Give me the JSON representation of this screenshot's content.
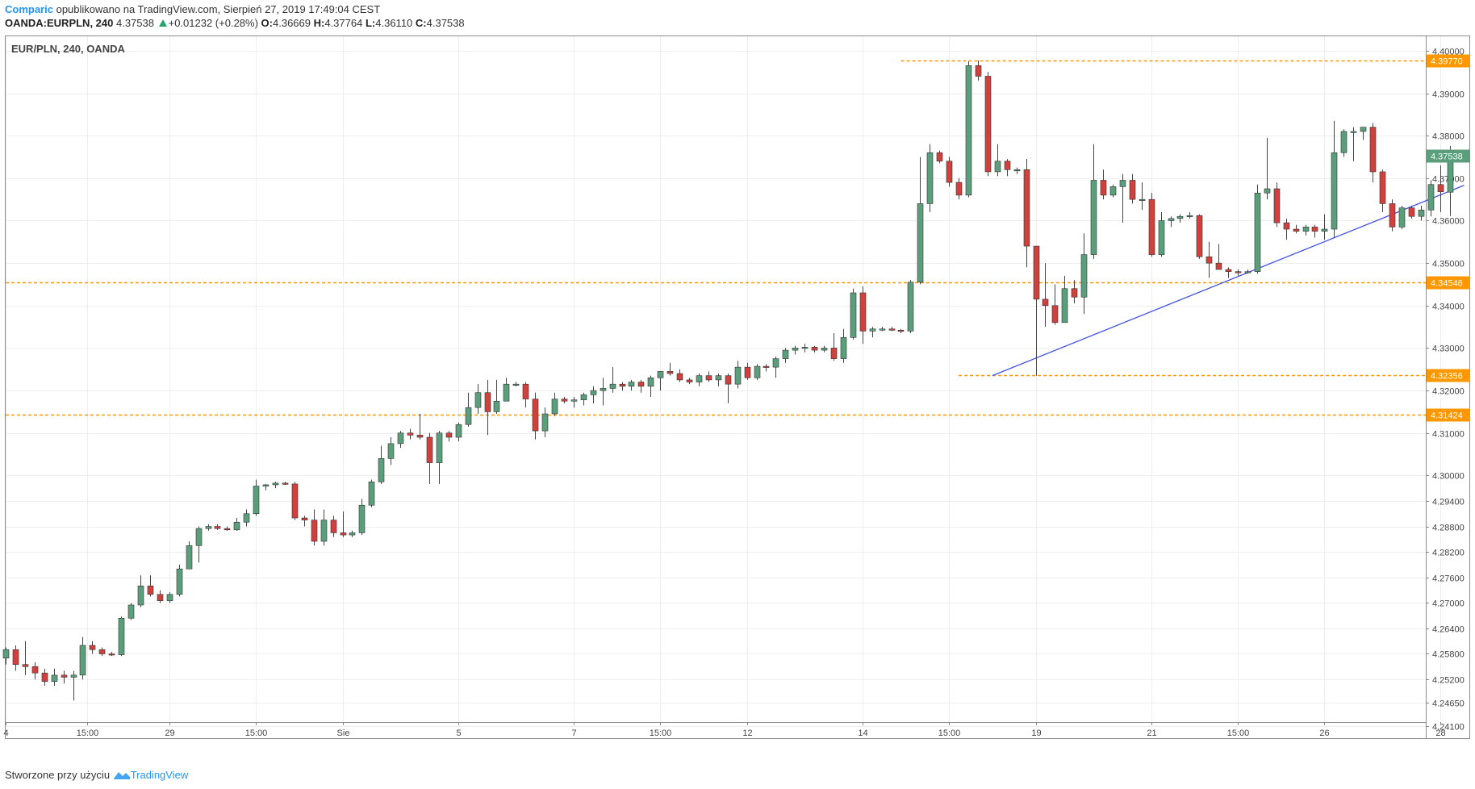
{
  "header": {
    "author": "Comparic",
    "published": "opublikowano na TradingView.com, Sierpień 27, 2019 17:49:04 CEST",
    "symbol": "OANDA:EURPLN, 240",
    "last": "4.37538",
    "change": "+0.01232 (+0.28%)",
    "o_label": "O:",
    "o": "4.36669",
    "h_label": "H:",
    "h": "4.37764",
    "l_label": "L:",
    "l": "4.36110",
    "c_label": "C:",
    "c": "4.37538"
  },
  "footer": {
    "prefix": "Stworzone przy użyciu",
    "brand": "TradingView",
    "brand_icon": "tradingview-logo-icon"
  },
  "colors": {
    "up": "#5b9e7c",
    "down": "#d0413d",
    "hline": "#ff9800",
    "trend": "#3f51e5",
    "label": "#ff9800",
    "lastlabel": "#5b9e7c"
  },
  "chart_data": {
    "type": "candlestick",
    "title": "EUR/PLN, 240, OANDA",
    "ylim": [
      4.2385,
      4.4015
    ],
    "y_ticks": [
      4.241,
      4.2465,
      4.252,
      4.258,
      4.264,
      4.27,
      4.276,
      4.282,
      4.288,
      4.294,
      4.3,
      4.31,
      4.32,
      4.33,
      4.34,
      4.35,
      4.36,
      4.37,
      4.38,
      4.39,
      4.4
    ],
    "y_tick_labels": [
      "4.24100",
      "4.24650",
      "4.25200",
      "4.25800",
      "4.26400",
      "4.27000",
      "4.27600",
      "4.28200",
      "4.28800",
      "4.29400",
      "4.30000",
      "4.31000",
      "4.32000",
      "4.33000",
      "4.34000",
      "4.35000",
      "4.36000",
      "4.37000",
      "4.38000",
      "4.39000",
      "4.40000"
    ],
    "x_ticks": [
      {
        "label": "4",
        "i": 0
      },
      {
        "label": "15:00",
        "i": 8.5
      },
      {
        "label": "29",
        "i": 17
      },
      {
        "label": "15:00",
        "i": 26
      },
      {
        "label": "Sie",
        "i": 35
      },
      {
        "label": "5",
        "i": 47
      },
      {
        "label": "7",
        "i": 59
      },
      {
        "label": "15:00",
        "i": 68
      },
      {
        "label": "12",
        "i": 77
      },
      {
        "label": "14",
        "i": 89
      },
      {
        "label": "15:00",
        "i": 98
      },
      {
        "label": "19",
        "i": 107
      },
      {
        "label": "21",
        "i": 119
      },
      {
        "label": "15:00",
        "i": 128
      },
      {
        "label": "26",
        "i": 137
      },
      {
        "label": "28",
        "i": 149
      }
    ],
    "hlines": [
      {
        "value": 4.3977,
        "label": "4.39770",
        "from_i": 93
      },
      {
        "value": 4.34546,
        "label": "4.34546",
        "from_i": -1
      },
      {
        "value": 4.32356,
        "label": "4.32356",
        "from_i": 99
      },
      {
        "value": 4.31424,
        "label": "4.31424",
        "from_i": -1
      }
    ],
    "last_price": {
      "value": 4.37538,
      "label": "4.37538"
    },
    "trendline": {
      "from": {
        "i": 102.5,
        "v": 4.3235
      },
      "to": {
        "i": 151.5,
        "v": 4.3683
      }
    },
    "candles": [
      [
        4.257,
        4.2595,
        4.2555,
        4.259
      ],
      [
        4.259,
        4.26,
        4.254,
        4.2555
      ],
      [
        4.2555,
        4.261,
        4.253,
        4.255
      ],
      [
        4.255,
        4.256,
        4.252,
        4.2535
      ],
      [
        4.2535,
        4.2545,
        4.2505,
        4.2515
      ],
      [
        4.2515,
        4.2545,
        4.2505,
        4.253
      ],
      [
        4.253,
        4.254,
        4.251,
        4.2525
      ],
      [
        4.2525,
        4.254,
        4.247,
        4.253
      ],
      [
        4.253,
        4.262,
        4.252,
        4.26
      ],
      [
        4.26,
        4.261,
        4.258,
        4.259
      ],
      [
        4.259,
        4.2595,
        4.2575,
        4.258
      ],
      [
        4.258,
        4.2585,
        4.2575,
        4.2578
      ],
      [
        4.2578,
        4.2668,
        4.2575,
        4.2664
      ],
      [
        4.2664,
        4.27,
        4.266,
        4.2695
      ],
      [
        4.2695,
        4.2765,
        4.269,
        4.274
      ],
      [
        4.274,
        4.2765,
        4.2715,
        4.272
      ],
      [
        4.272,
        4.273,
        4.27,
        4.2705
      ],
      [
        4.2705,
        4.2725,
        4.27,
        4.272
      ],
      [
        4.272,
        4.279,
        4.2715,
        4.278
      ],
      [
        4.278,
        4.2845,
        4.278,
        4.2835
      ],
      [
        4.2835,
        4.288,
        4.2795,
        4.2875
      ],
      [
        4.2875,
        4.2885,
        4.287,
        4.288
      ],
      [
        4.288,
        4.2885,
        4.2872,
        4.2875
      ],
      [
        4.2875,
        4.288,
        4.287,
        4.2872
      ],
      [
        4.2872,
        4.29,
        4.287,
        4.289
      ],
      [
        4.289,
        4.292,
        4.288,
        4.291
      ],
      [
        4.291,
        4.299,
        4.2905,
        4.2975
      ],
      [
        4.2975,
        4.298,
        4.2965,
        4.2978
      ],
      [
        4.2978,
        4.2985,
        4.297,
        4.2982
      ],
      [
        4.2982,
        4.2985,
        4.2978,
        4.298
      ],
      [
        4.298,
        4.2985,
        4.2895,
        4.29
      ],
      [
        4.29,
        4.2905,
        4.288,
        4.2895
      ],
      [
        4.2895,
        4.292,
        4.2835,
        4.2845
      ],
      [
        4.2845,
        4.292,
        4.2835,
        4.2895
      ],
      [
        4.2895,
        4.2905,
        4.2855,
        4.2865
      ],
      [
        4.2865,
        4.2915,
        4.2855,
        4.286
      ],
      [
        4.286,
        4.287,
        4.2855,
        4.2865
      ],
      [
        4.2865,
        4.2945,
        4.286,
        4.293
      ],
      [
        4.293,
        4.299,
        4.2925,
        4.2985
      ],
      [
        4.2985,
        4.307,
        4.298,
        4.304
      ],
      [
        4.304,
        4.309,
        4.3025,
        4.3075
      ],
      [
        4.3075,
        4.3105,
        4.3065,
        4.31
      ],
      [
        4.31,
        4.311,
        4.3085,
        4.3095
      ],
      [
        4.3095,
        4.3145,
        4.3085,
        4.309
      ],
      [
        4.309,
        4.31,
        4.298,
        4.303
      ],
      [
        4.303,
        4.3105,
        4.298,
        4.31
      ],
      [
        4.31,
        4.3105,
        4.308,
        4.309
      ],
      [
        4.309,
        4.3125,
        4.308,
        4.312
      ],
      [
        4.312,
        4.3195,
        4.3115,
        4.316
      ],
      [
        4.316,
        4.3215,
        4.3145,
        4.3195
      ],
      [
        4.3195,
        4.3225,
        4.3095,
        4.315
      ],
      [
        4.315,
        4.3225,
        4.3145,
        4.3175
      ],
      [
        4.3175,
        4.323,
        4.3175,
        4.3215
      ],
      [
        4.3215,
        4.322,
        4.321,
        4.3215
      ],
      [
        4.3215,
        4.322,
        4.316,
        4.318
      ],
      [
        4.318,
        4.3195,
        4.3085,
        4.3105
      ],
      [
        4.3105,
        4.316,
        4.309,
        4.3145
      ],
      [
        4.3145,
        4.3195,
        4.314,
        4.318
      ],
      [
        4.318,
        4.3185,
        4.317,
        4.3175
      ],
      [
        4.3175,
        4.3185,
        4.316,
        4.3178
      ],
      [
        4.3178,
        4.3195,
        4.3165,
        4.319
      ],
      [
        4.319,
        4.321,
        4.317,
        4.32
      ],
      [
        4.32,
        4.323,
        4.3165,
        4.3205
      ],
      [
        4.3205,
        4.3255,
        4.3195,
        4.3215
      ],
      [
        4.3215,
        4.322,
        4.32,
        4.321
      ],
      [
        4.321,
        4.3225,
        4.32,
        4.322
      ],
      [
        4.322,
        4.3225,
        4.3195,
        4.321
      ],
      [
        4.321,
        4.3235,
        4.3185,
        4.323
      ],
      [
        4.323,
        4.3245,
        4.32,
        4.3245
      ],
      [
        4.3245,
        4.3265,
        4.3235,
        4.324
      ],
      [
        4.324,
        4.325,
        4.322,
        4.3225
      ],
      [
        4.3225,
        4.323,
        4.3215,
        4.322
      ],
      [
        4.322,
        4.324,
        4.321,
        4.3235
      ],
      [
        4.3235,
        4.3245,
        4.322,
        4.3225
      ],
      [
        4.3225,
        4.324,
        4.321,
        4.3235
      ],
      [
        4.3235,
        4.324,
        4.317,
        4.3215
      ],
      [
        4.3215,
        4.327,
        4.3205,
        4.3255
      ],
      [
        4.3255,
        4.3265,
        4.3225,
        4.323
      ],
      [
        4.323,
        4.3262,
        4.3225,
        4.3257
      ],
      [
        4.3257,
        4.3262,
        4.3245,
        4.3255
      ],
      [
        4.3255,
        4.328,
        4.323,
        4.3275
      ],
      [
        4.3275,
        4.33,
        4.3265,
        4.3295
      ],
      [
        4.3295,
        4.3305,
        4.3285,
        4.33
      ],
      [
        4.33,
        4.331,
        4.329,
        4.3302
      ],
      [
        4.3302,
        4.3305,
        4.329,
        4.3295
      ],
      [
        4.3295,
        4.3305,
        4.329,
        4.33
      ],
      [
        4.33,
        4.3335,
        4.327,
        4.3275
      ],
      [
        4.3275,
        4.3345,
        4.3265,
        4.3325
      ],
      [
        4.3325,
        4.344,
        4.332,
        4.343
      ],
      [
        4.343,
        4.3445,
        4.331,
        4.334
      ],
      [
        4.334,
        4.335,
        4.3325,
        4.3345
      ],
      [
        4.3345,
        4.335,
        4.334,
        4.3345
      ],
      [
        4.3345,
        4.335,
        4.334,
        4.3342
      ],
      [
        4.3342,
        4.3345,
        4.3335,
        4.334
      ],
      [
        4.334,
        4.346,
        4.3335,
        4.3455
      ],
      [
        4.3455,
        4.375,
        4.345,
        4.364
      ],
      [
        4.364,
        4.378,
        4.362,
        4.376
      ],
      [
        4.376,
        4.3765,
        4.3735,
        4.374
      ],
      [
        4.374,
        4.375,
        4.368,
        4.369
      ],
      [
        4.369,
        4.37,
        4.365,
        4.366
      ],
      [
        4.366,
        4.3975,
        4.3655,
        4.3965
      ],
      [
        4.3965,
        4.3977,
        4.393,
        4.394
      ],
      [
        4.394,
        4.395,
        4.3705,
        4.3715
      ],
      [
        4.3715,
        4.378,
        4.3705,
        4.374
      ],
      [
        4.374,
        4.3745,
        4.3705,
        4.372
      ],
      [
        4.372,
        4.3725,
        4.371,
        4.372
      ],
      [
        4.372,
        4.3745,
        4.349,
        4.354
      ],
      [
        4.354,
        4.354,
        4.3235,
        4.3415
      ],
      [
        4.3415,
        4.35,
        4.335,
        4.34
      ],
      [
        4.34,
        4.345,
        4.3355,
        4.336
      ],
      [
        4.336,
        4.347,
        4.336,
        4.344
      ],
      [
        4.344,
        4.346,
        4.3405,
        4.342
      ],
      [
        4.342,
        4.357,
        4.338,
        4.352
      ],
      [
        4.352,
        4.378,
        4.351,
        4.3695
      ],
      [
        4.3695,
        4.372,
        4.365,
        4.366
      ],
      [
        4.366,
        4.3685,
        4.3655,
        4.368
      ],
      [
        4.368,
        4.371,
        4.3595,
        4.3695
      ],
      [
        4.3695,
        4.371,
        4.364,
        4.365
      ],
      [
        4.365,
        4.369,
        4.3625,
        4.365
      ],
      [
        4.365,
        4.3665,
        4.3515,
        4.352
      ],
      [
        4.352,
        4.362,
        4.3515,
        4.36
      ],
      [
        4.36,
        4.361,
        4.3585,
        4.3605
      ],
      [
        4.3605,
        4.3615,
        4.3595,
        4.361
      ],
      [
        4.361,
        4.362,
        4.3605,
        4.3612
      ],
      [
        4.3612,
        4.3615,
        4.351,
        4.3515
      ],
      [
        4.3515,
        4.355,
        4.3465,
        4.35
      ],
      [
        4.35,
        4.3545,
        4.349,
        4.3485
      ],
      [
        4.3485,
        4.349,
        4.3465,
        4.348
      ],
      [
        4.348,
        4.3485,
        4.347,
        4.3478
      ],
      [
        4.3478,
        4.3485,
        4.3475,
        4.348
      ],
      [
        4.348,
        4.3685,
        4.3475,
        4.3665
      ],
      [
        4.3665,
        4.3795,
        4.365,
        4.3675
      ],
      [
        4.3675,
        4.369,
        4.3585,
        4.3595
      ],
      [
        4.3595,
        4.3605,
        4.3555,
        4.358
      ],
      [
        4.358,
        4.359,
        4.357,
        4.3575
      ],
      [
        4.3575,
        4.359,
        4.3565,
        4.3585
      ],
      [
        4.3585,
        4.359,
        4.356,
        4.3575
      ],
      [
        4.3575,
        4.3615,
        4.3555,
        4.358
      ],
      [
        4.358,
        4.3835,
        4.356,
        4.376
      ],
      [
        4.376,
        4.3815,
        4.375,
        4.381
      ],
      [
        4.381,
        4.382,
        4.374,
        4.381
      ],
      [
        4.381,
        4.382,
        4.379,
        4.382
      ],
      [
        4.382,
        4.383,
        4.369,
        4.3715
      ],
      [
        4.3715,
        4.372,
        4.362,
        4.364
      ],
      [
        4.364,
        4.365,
        4.3575,
        4.3585
      ],
      [
        4.3585,
        4.3635,
        4.358,
        4.363
      ],
      [
        4.363,
        4.3635,
        4.3605,
        4.361
      ],
      [
        4.361,
        4.3635,
        4.36,
        4.3625
      ],
      [
        4.3625,
        4.3695,
        4.361,
        4.3685
      ],
      [
        4.3685,
        4.373,
        4.362,
        4.3668
      ],
      [
        4.3667,
        4.3776,
        4.3611,
        4.3754
      ]
    ]
  }
}
